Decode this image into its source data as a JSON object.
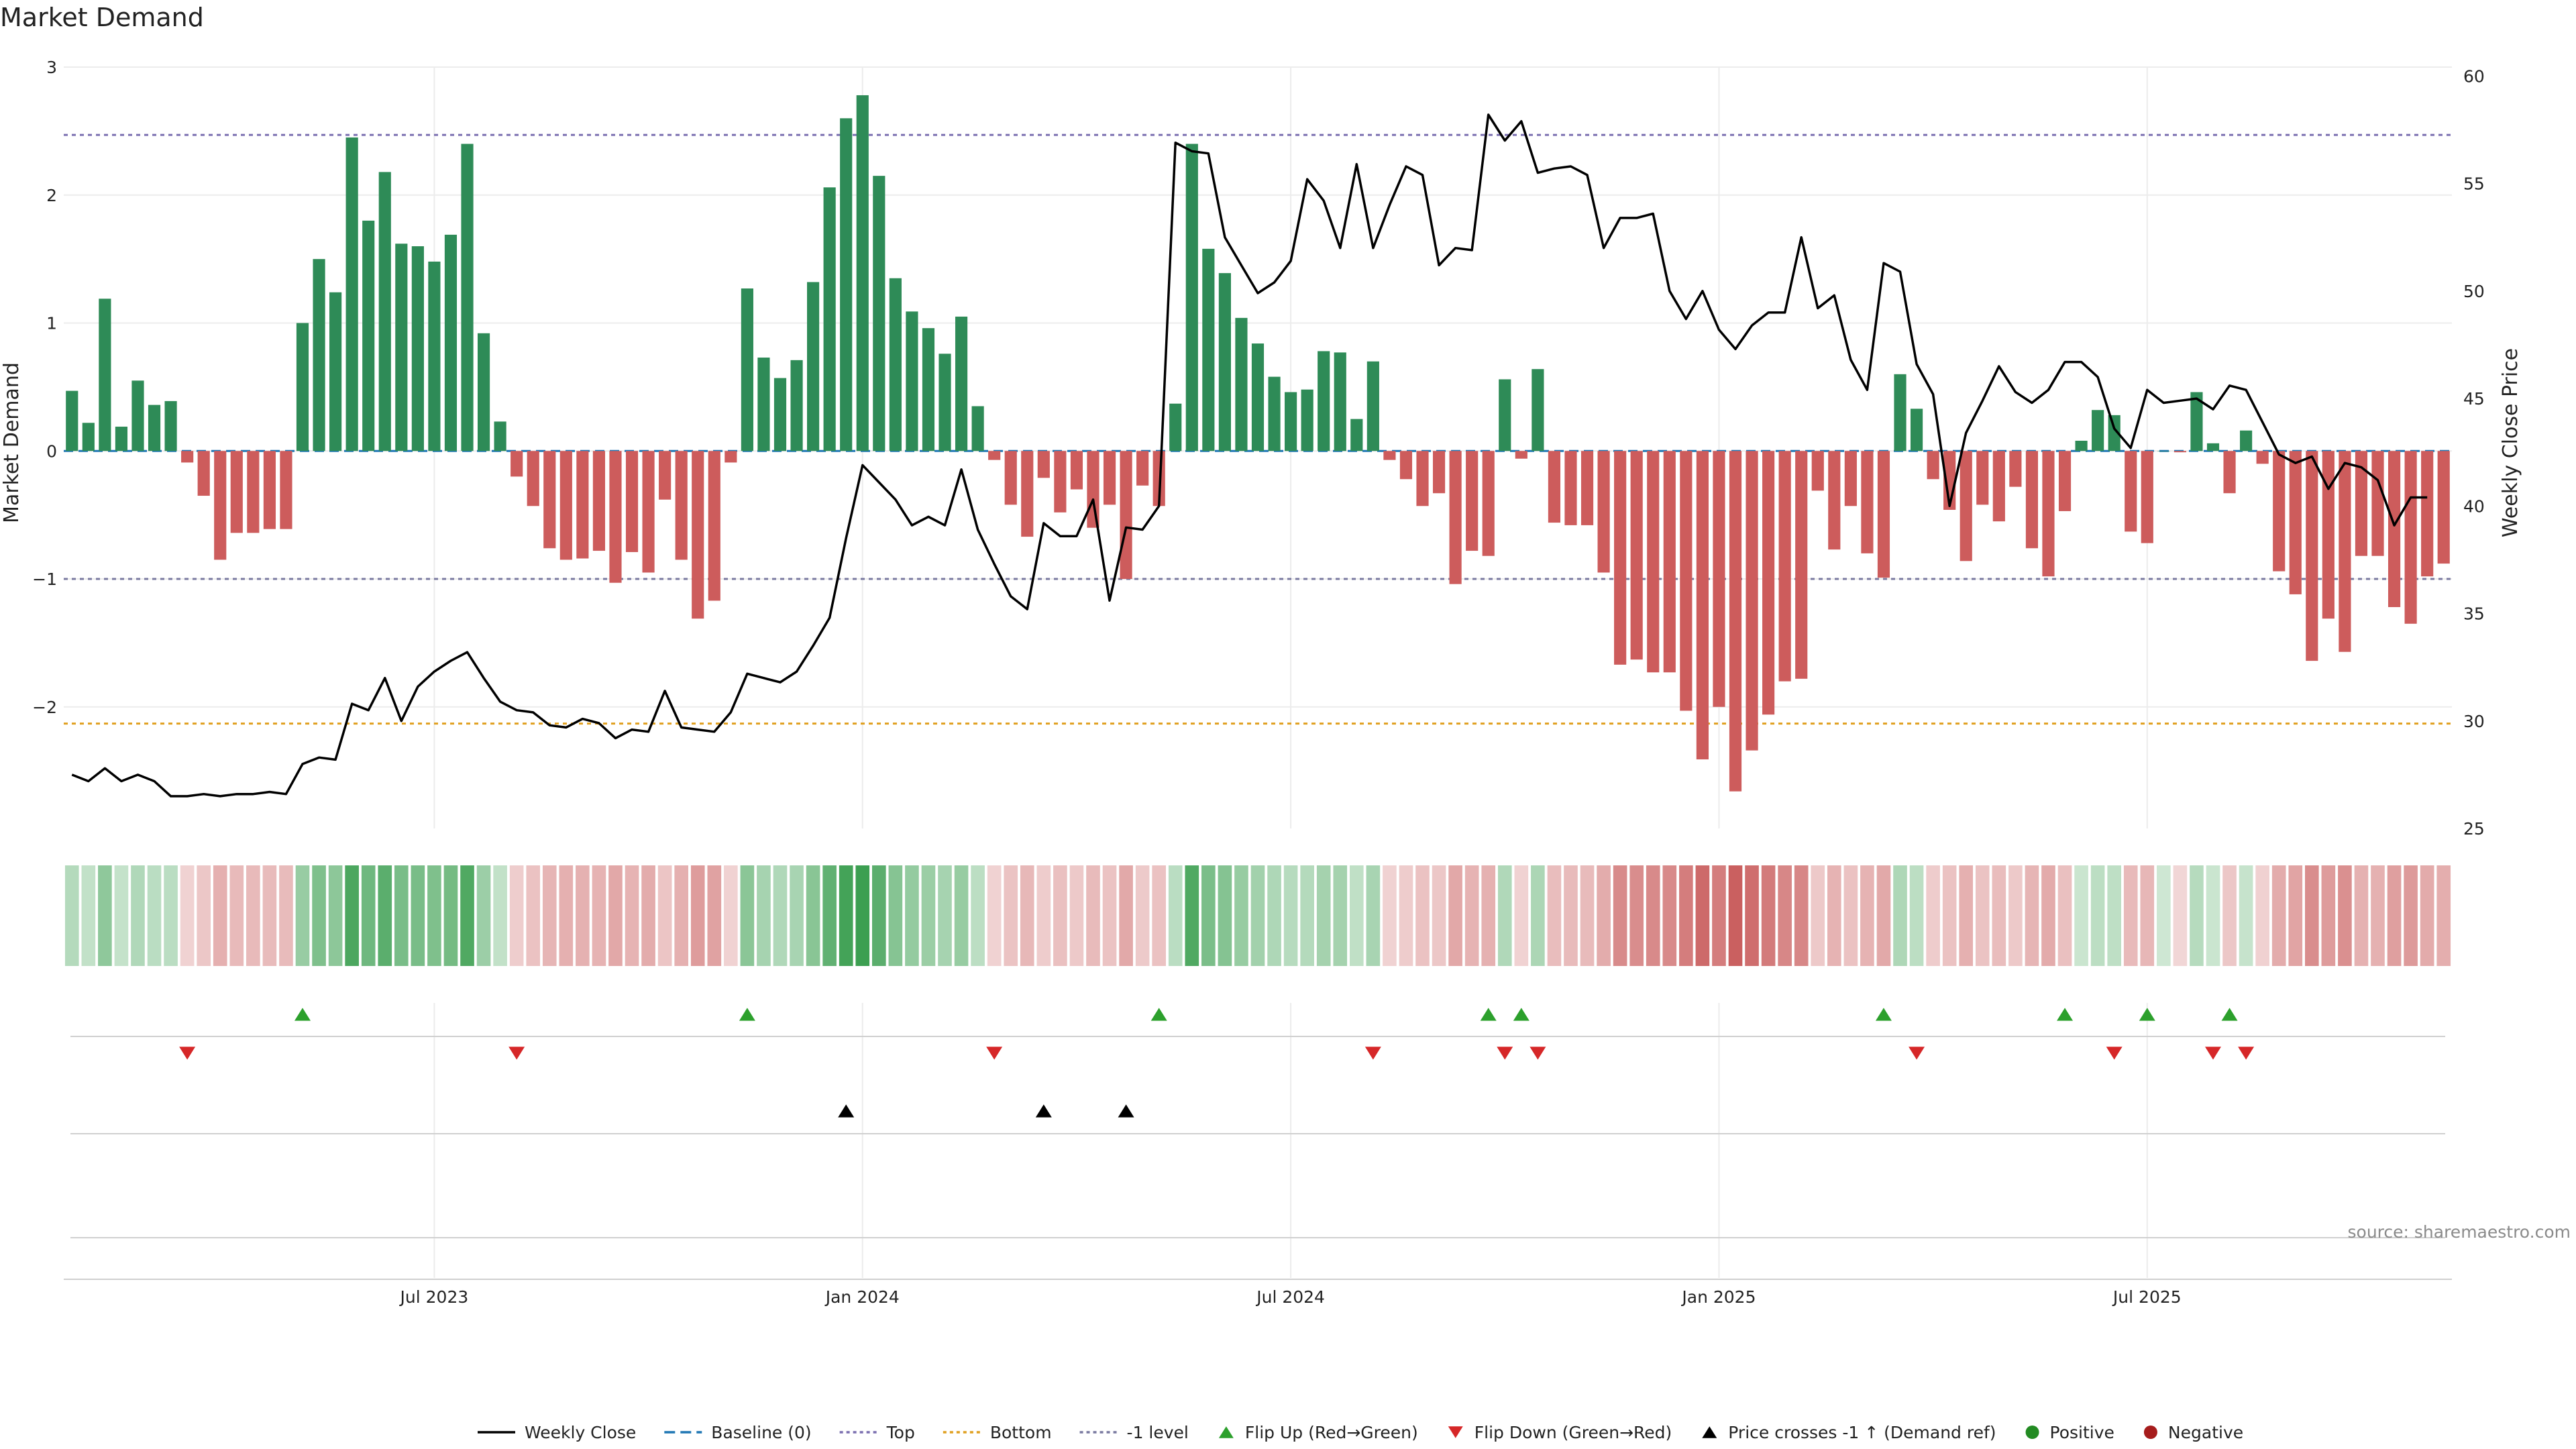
{
  "title": "Market Demand",
  "source_note": "source: sharemaestro.com",
  "colors": {
    "positive_bar": "#2e8b57",
    "negative_bar": "#cd5c5c",
    "price_line": "#000000",
    "baseline": "#1f77b4",
    "top_line": "#7b6fb0",
    "bottom_line": "#e0a020",
    "neg1_line": "#7a7aa0",
    "flip_up": "#2ca02c",
    "flip_down": "#d62728",
    "price_cross": "#000000",
    "heat_positive": "#3a9e4f",
    "heat_negative": "#c85a5a"
  },
  "chart_data": {
    "type": "bar",
    "title": "Market Demand",
    "ylabel": "Market Demand",
    "y2label": "Weekly Close Price",
    "ylim": [
      -2.95,
      3.0
    ],
    "y2lim": [
      25,
      60
    ],
    "yticks": [
      {
        "v": 3,
        "label": "3"
      },
      {
        "v": 2,
        "label": "2"
      },
      {
        "v": 1,
        "label": "1"
      },
      {
        "v": 0,
        "label": "0"
      },
      {
        "v": -1,
        "label": "−1"
      },
      {
        "v": -2,
        "label": "−2"
      }
    ],
    "y2ticks": [
      {
        "v": 60,
        "label": "60"
      },
      {
        "v": 55,
        "label": "55"
      },
      {
        "v": 50,
        "label": "50"
      },
      {
        "v": 45,
        "label": "45"
      },
      {
        "v": 40,
        "label": "40"
      },
      {
        "v": 35,
        "label": "35"
      },
      {
        "v": 30,
        "label": "30"
      },
      {
        "v": 25,
        "label": "25"
      }
    ],
    "xticks": [
      {
        "week": 22,
        "label": "Jul 2023"
      },
      {
        "week": 48,
        "label": "Jan 2024"
      },
      {
        "week": 74,
        "label": "Jul 2024"
      },
      {
        "week": 100,
        "label": "Jan 2025"
      },
      {
        "week": 126,
        "label": "Jul 2025"
      }
    ],
    "grid": true,
    "legend_position": "bottom",
    "reference_lines": {
      "baseline": 0,
      "top": 2.47,
      "bottom": -2.13,
      "minus_one": -1
    },
    "demand": [
      0.47,
      0.22,
      1.19,
      0.19,
      0.55,
      0.36,
      0.39,
      -0.09,
      -0.35,
      -0.85,
      -0.64,
      -0.64,
      -0.61,
      -0.61,
      1.0,
      1.5,
      1.24,
      2.45,
      1.8,
      2.18,
      1.62,
      1.6,
      1.48,
      1.69,
      2.4,
      0.92,
      0.23,
      -0.2,
      -0.43,
      -0.76,
      -0.85,
      -0.84,
      -0.78,
      -1.03,
      -0.79,
      -0.95,
      -0.38,
      -0.85,
      -1.31,
      -1.17,
      -0.09,
      1.27,
      0.73,
      0.57,
      0.71,
      1.32,
      2.06,
      2.6,
      2.78,
      2.15,
      1.35,
      1.09,
      0.96,
      0.76,
      1.05,
      0.35,
      -0.07,
      -0.42,
      -0.67,
      -0.21,
      -0.48,
      -0.3,
      -0.6,
      -0.42,
      -1.0,
      -0.27,
      -0.43,
      0.37,
      2.4,
      1.58,
      1.39,
      1.04,
      0.84,
      0.58,
      0.46,
      0.48,
      0.78,
      0.77,
      0.25,
      0.7,
      -0.07,
      -0.22,
      -0.43,
      -0.33,
      -1.04,
      -0.78,
      -0.82,
      0.56,
      -0.06,
      0.64,
      -0.56,
      -0.58,
      -0.58,
      -0.95,
      -1.67,
      -1.63,
      -1.73,
      -1.73,
      -2.03,
      -2.41,
      -2.0,
      -2.66,
      -2.34,
      -2.06,
      -1.8,
      -1.78,
      -0.31,
      -0.77,
      -0.43,
      -0.8,
      -0.99,
      0.6,
      0.33,
      -0.22,
      -0.46,
      -0.86,
      -0.42,
      -0.55,
      -0.28,
      -0.76,
      -0.98,
      -0.47,
      0.08,
      0.32,
      0.28,
      -0.63,
      -0.72,
      0.0,
      -0.01,
      0.46,
      0.06,
      -0.33,
      0.16,
      -0.1,
      -0.94,
      -1.12,
      -1.64,
      -1.31,
      -1.57,
      -0.82,
      -0.82,
      -1.22,
      -1.35,
      -0.98,
      -0.88
    ],
    "price": [
      27.5,
      27.2,
      27.8,
      27.2,
      27.5,
      27.2,
      26.5,
      26.5,
      26.6,
      26.5,
      26.6,
      26.6,
      26.7,
      26.6,
      28.0,
      28.3,
      28.2,
      30.8,
      30.5,
      32.0,
      30.0,
      31.6,
      32.3,
      32.8,
      33.2,
      32.0,
      30.9,
      30.5,
      30.4,
      29.8,
      29.7,
      30.1,
      29.9,
      29.2,
      29.6,
      29.5,
      31.4,
      29.7,
      29.6,
      29.5,
      30.4,
      32.2,
      32.0,
      31.8,
      32.3,
      33.5,
      34.8,
      38.5,
      41.9,
      41.1,
      40.3,
      39.1,
      39.5,
      39.1,
      41.7,
      38.9,
      37.3,
      35.8,
      35.2,
      39.2,
      38.6,
      38.6,
      40.3,
      35.6,
      39.0,
      38.9,
      40.0,
      56.9,
      56.5,
      56.4,
      52.5,
      51.2,
      49.9,
      50.4,
      51.4,
      55.2,
      54.2,
      52.0,
      55.9,
      52.0,
      54.0,
      55.8,
      55.4,
      51.2,
      52.0,
      51.9,
      58.2,
      57.0,
      57.9,
      55.5,
      55.7,
      55.8,
      55.4,
      52.0,
      53.4,
      53.4,
      53.6,
      50.0,
      48.7,
      50.0,
      48.2,
      47.3,
      48.4,
      49.0,
      49.0,
      52.5,
      49.2,
      49.8,
      46.8,
      45.4,
      51.3,
      50.9,
      46.6,
      45.2,
      40.0,
      43.4,
      44.9,
      46.5,
      45.3,
      44.8,
      45.4,
      46.7,
      46.7,
      46.0,
      43.6,
      42.7,
      45.4,
      44.8,
      44.9,
      45.0,
      44.5,
      45.6,
      45.4,
      43.9,
      42.4,
      42.0,
      42.3,
      40.8,
      42.0,
      41.8,
      41.2,
      39.1,
      40.4,
      40.4
    ],
    "flip_up_weeks": [
      14,
      41,
      66,
      86,
      88,
      110,
      121,
      126,
      131
    ],
    "flip_down_weeks": [
      7,
      27,
      56,
      79,
      87,
      89,
      112,
      124,
      130,
      132
    ],
    "price_cross_weeks": [
      47,
      59,
      64
    ]
  },
  "legend": [
    {
      "key": "weekly_close",
      "label": "Weekly Close",
      "style": "solid"
    },
    {
      "key": "baseline",
      "label": "Baseline (0)",
      "style": "dashed"
    },
    {
      "key": "top",
      "label": "Top",
      "style": "dotted"
    },
    {
      "key": "bottom",
      "label": "Bottom",
      "style": "dotted"
    },
    {
      "key": "minus_one",
      "label": "-1 level",
      "style": "dotted"
    },
    {
      "key": "flip_up",
      "label": "Flip Up (Red→Green)",
      "style": "tri-up"
    },
    {
      "key": "flip_down",
      "label": "Flip Down (Green→Red)",
      "style": "tri-down"
    },
    {
      "key": "price_cross",
      "label": "Price crosses -1 ↑ (Demand ref)",
      "style": "tri-up"
    },
    {
      "key": "positive",
      "label": "Positive",
      "style": "dot"
    },
    {
      "key": "negative",
      "label": "Negative",
      "style": "dot"
    }
  ]
}
